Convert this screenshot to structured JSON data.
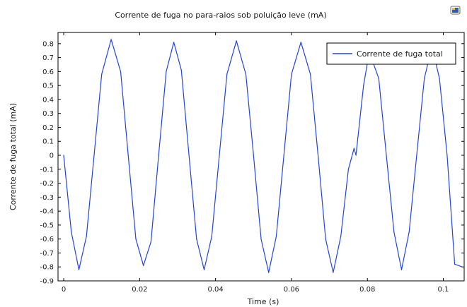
{
  "chart_data": {
    "type": "line",
    "title": "Corrente de fuga no para-raios sob poluição leve (mA)",
    "xlabel": "Time (s)",
    "ylabel": "Corrente de fuga total (mA)",
    "xlim": [
      -0.0015,
      0.1055
    ],
    "ylim": [
      -0.9,
      0.88
    ],
    "x_ticks": [
      0,
      0.02,
      0.04,
      0.06,
      0.08,
      0.1
    ],
    "x_tick_labels": [
      "0",
      "0.02",
      "0.04",
      "0.06",
      "0.08",
      "0.1"
    ],
    "y_ticks": [
      0.8,
      0.7,
      0.6,
      0.5,
      0.4,
      0.3,
      0.2,
      0.1,
      0,
      -0.1,
      -0.2,
      -0.3,
      -0.4,
      -0.5,
      -0.6,
      -0.7,
      -0.8,
      -0.9
    ],
    "y_tick_labels": [
      "0.8",
      "0.7",
      "0.6",
      "0.5",
      "0.4",
      "0.3",
      "0.2",
      "0.1",
      "0",
      "-0.1",
      "-0.2",
      "-0.3",
      "-0.4",
      "-0.5",
      "-0.6",
      "-0.7",
      "-0.8",
      "-0.9"
    ],
    "grid": false,
    "legend_position": "top-right",
    "series": [
      {
        "name": "Corrente de fuga total",
        "color": "#2244dd",
        "x": [
          0,
          0.002,
          0.004,
          0.006,
          0.008,
          0.01,
          0.0125,
          0.015,
          0.017,
          0.019,
          0.021,
          0.023,
          0.025,
          0.027,
          0.029,
          0.031,
          0.033,
          0.035,
          0.037,
          0.039,
          0.041,
          0.043,
          0.0455,
          0.048,
          0.05,
          0.052,
          0.054,
          0.056,
          0.058,
          0.06,
          0.0625,
          0.065,
          0.067,
          0.069,
          0.071,
          0.073,
          0.075,
          0.0765,
          0.077,
          0.079,
          0.0805,
          0.083,
          0.085,
          0.087,
          0.089,
          0.091,
          0.093,
          0.095,
          0.097,
          0.099,
          0.101,
          0.103,
          0.105
        ],
        "y": [
          0.0,
          -0.55,
          -0.82,
          -0.58,
          0.0,
          0.58,
          0.83,
          0.6,
          0.0,
          -0.6,
          -0.79,
          -0.62,
          0.0,
          0.6,
          0.81,
          0.61,
          0.0,
          -0.6,
          -0.82,
          -0.58,
          0.0,
          0.58,
          0.82,
          0.58,
          0.0,
          -0.6,
          -0.84,
          -0.58,
          0.0,
          0.58,
          0.81,
          0.58,
          0.0,
          -0.6,
          -0.84,
          -0.58,
          -0.1,
          0.05,
          0.0,
          0.5,
          0.74,
          0.55,
          0.0,
          -0.55,
          -0.82,
          -0.55,
          0.0,
          0.55,
          0.78,
          0.55,
          0.0,
          -0.78,
          -0.8
        ]
      }
    ]
  },
  "toolbar": {
    "icon": "window-icon"
  }
}
